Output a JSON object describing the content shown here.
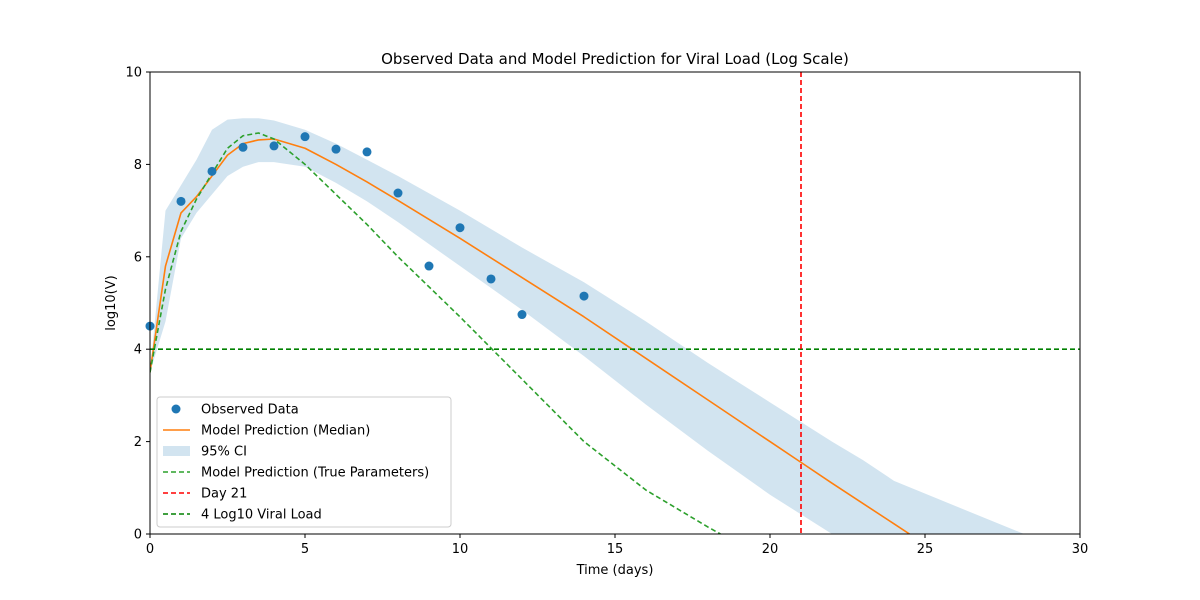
{
  "chart_data": {
    "type": "line",
    "title": "Observed Data and Model Prediction for Viral Load (Log Scale)",
    "xlabel": "Time (days)",
    "ylabel": "log10(V)",
    "xlim": [
      0,
      30
    ],
    "ylim": [
      0,
      10
    ],
    "xticks": [
      0,
      5,
      10,
      15,
      20,
      25,
      30
    ],
    "yticks": [
      0,
      2,
      4,
      6,
      8,
      10
    ],
    "grid": false,
    "legend_position": "lower-left",
    "series": [
      {
        "name": "Observed Data",
        "kind": "scatter",
        "color": "#1f77b4",
        "x": [
          0,
          1,
          2,
          3,
          4,
          5,
          6,
          7,
          8,
          9,
          10,
          11,
          12,
          14
        ],
        "y": [
          4.5,
          7.2,
          7.85,
          8.37,
          8.4,
          8.6,
          8.33,
          8.27,
          7.38,
          5.8,
          6.63,
          5.52,
          4.75,
          5.15
        ]
      },
      {
        "name": "Model Prediction (Median)",
        "kind": "line",
        "color": "#ff7f0e",
        "x": [
          0,
          0.5,
          1,
          1.5,
          2,
          2.5,
          3,
          3.5,
          4,
          5,
          6,
          7,
          8,
          10,
          12,
          14,
          16,
          18,
          20,
          21,
          22,
          24,
          24.5
        ],
        "y": [
          3.5,
          5.8,
          6.95,
          7.3,
          7.75,
          8.2,
          8.45,
          8.53,
          8.55,
          8.35,
          8.0,
          7.62,
          7.22,
          6.4,
          5.55,
          4.7,
          3.8,
          2.9,
          2.0,
          1.55,
          1.1,
          0.22,
          0
        ]
      },
      {
        "name": "95% CI",
        "kind": "band",
        "color": "#1f77b4",
        "opacity": 0.2,
        "x": [
          0,
          0.5,
          1,
          1.5,
          2,
          2.5,
          3,
          3.5,
          4,
          5,
          6,
          7,
          8,
          10,
          12,
          14,
          16,
          18,
          20,
          22,
          23,
          24,
          26,
          28.2
        ],
        "upper": [
          3.5,
          7.0,
          7.55,
          8.1,
          8.75,
          8.97,
          9.0,
          9.0,
          8.95,
          8.75,
          8.45,
          8.1,
          7.75,
          7.0,
          6.2,
          5.45,
          4.6,
          3.7,
          2.85,
          2.0,
          1.6,
          1.15,
          0.6,
          0
        ],
        "lower": [
          3.5,
          4.6,
          6.4,
          6.95,
          7.35,
          7.75,
          7.95,
          8.05,
          8.05,
          7.95,
          7.6,
          7.2,
          6.75,
          5.8,
          4.85,
          3.85,
          2.8,
          1.8,
          0.85,
          0,
          0,
          0,
          0,
          0
        ]
      },
      {
        "name": "Model Prediction (True Parameters)",
        "kind": "line",
        "dashed": true,
        "color": "#2ca02c",
        "x": [
          0,
          0.5,
          1,
          1.5,
          2,
          2.5,
          3,
          3.5,
          4,
          5,
          6,
          7,
          8,
          10,
          12,
          14,
          16,
          18,
          18.4
        ],
        "y": [
          3.5,
          5.3,
          6.55,
          7.25,
          7.8,
          8.35,
          8.62,
          8.68,
          8.55,
          8.0,
          7.35,
          6.7,
          6.0,
          4.7,
          3.35,
          2.0,
          0.95,
          0.15,
          0
        ]
      },
      {
        "name": "Day 21",
        "kind": "vline",
        "dashed": true,
        "color": "#ff0000",
        "x": 21
      },
      {
        "name": "4 Log10 Viral Load",
        "kind": "hline",
        "dashed": true,
        "color": "#008000",
        "y": 4
      }
    ]
  }
}
